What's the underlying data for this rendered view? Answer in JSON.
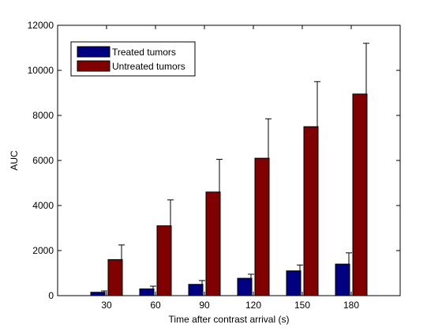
{
  "chart_data": {
    "type": "bar",
    "xlabel": "Time after contrast arrival (s)",
    "ylabel": "AUC",
    "categories": [
      "30",
      "60",
      "90",
      "120",
      "150",
      "180"
    ],
    "ylim": [
      0,
      12000
    ],
    "yticks": [
      "0",
      "2000",
      "4000",
      "6000",
      "8000",
      "10000",
      "12000"
    ],
    "grid": false,
    "legend_position": "top-left",
    "series": [
      {
        "name": "Treated tumors",
        "color": "#000080",
        "values": [
          150,
          300,
          500,
          770,
          1100,
          1400
        ],
        "error": [
          60,
          120,
          170,
          180,
          260,
          500
        ]
      },
      {
        "name": "Untreated tumors",
        "color": "#800000",
        "values": [
          1600,
          3100,
          4600,
          6100,
          7500,
          8950
        ],
        "error": [
          650,
          1150,
          1450,
          1750,
          2000,
          2250
        ]
      }
    ]
  }
}
